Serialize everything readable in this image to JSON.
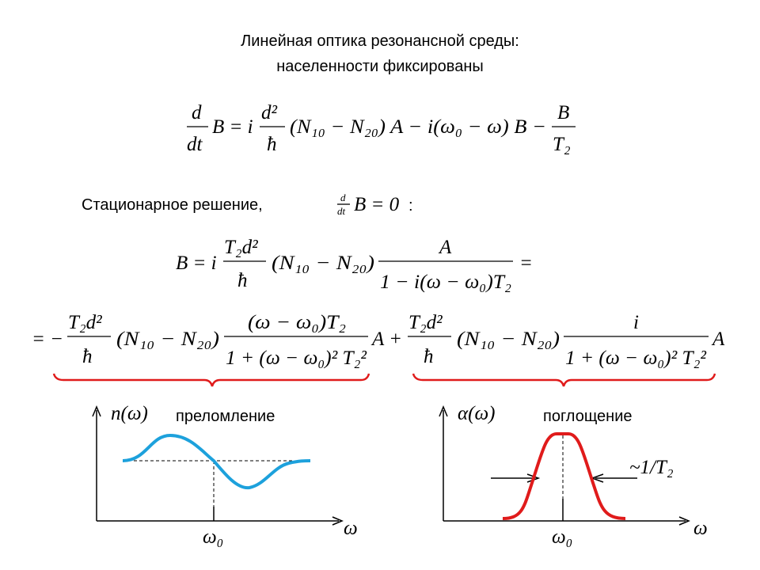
{
  "title": [
    "Линейная оптика резонансной среды:",
    "населенности фиксированы"
  ],
  "equation_1": {
    "d": "d",
    "dt": "dt",
    "lhs": "B = i",
    "d2": "d²",
    "hbar": "ħ",
    "middle": "(N₁₀ − N₂₀) A − i(ω₀ − ω) B −",
    "B": "B",
    "T2": "T₂"
  },
  "stationary": {
    "label": "Стационарное решение,",
    "d": "d",
    "dt": "dt",
    "condition": "B = 0",
    "colon": ":"
  },
  "equation_2": {
    "lhs": "B = i",
    "num1": "T₂d²",
    "den1": "ħ",
    "middle": "(N₁₀ − N₂₀)",
    "num2": "A",
    "den2": "1 − i(ω − ω₀)T₂",
    "equals": "="
  },
  "equation_3": {
    "start": "= −",
    "num1": "T₂d²",
    "den1": "ħ",
    "mid1": "(N₁₀ − N₂₀)",
    "num2": "(ω − ω₀)T₂",
    "den2": "1 + (ω − ω₀)² T₂²",
    "plus": "A +",
    "num3": "T₂d²",
    "den3": "ħ",
    "mid2": "(N₁₀ − N₂₀)",
    "num4": "i",
    "den4": "1 + (ω − ω₀)² T₂²",
    "end": "A"
  },
  "graph_left": {
    "y_label": "n(ω)",
    "caption": "преломление",
    "center_label": "ω₀",
    "x_label": "ω"
  },
  "graph_right": {
    "y_label": "α(ω)",
    "caption": "поглощение",
    "width_label": "~1/T₂",
    "center_label": "ω₀",
    "x_label": "ω"
  }
}
